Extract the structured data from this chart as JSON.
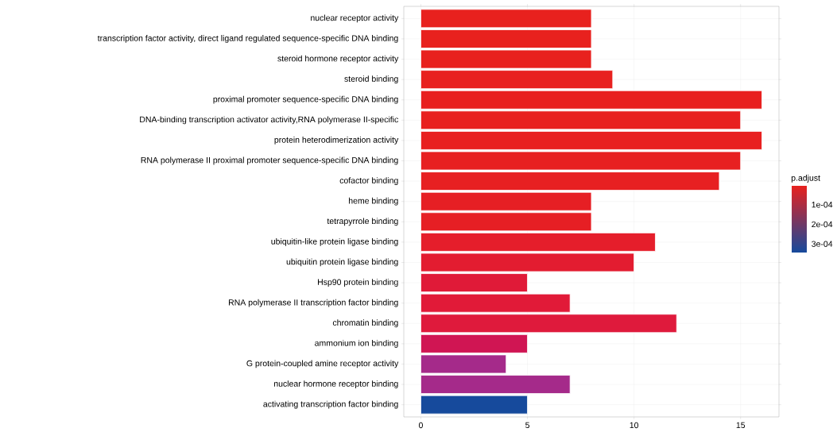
{
  "chart_data": {
    "type": "bar",
    "orientation": "horizontal",
    "categories": [
      "nuclear receptor activity",
      "transcription factor activity, direct ligand regulated sequence-specific DNA binding",
      "steroid hormone receptor activity",
      "steroid binding",
      "proximal promoter sequence-specific DNA binding",
      "DNA-binding transcription activator activity,RNA polymerase II-specific",
      "protein heterodimerization activity",
      "RNA polymerase II proximal promoter sequence-specific DNA binding",
      "cofactor binding",
      "heme binding",
      "tetrapyrrole binding",
      "ubiquitin-like protein ligase binding",
      "ubiquitin protein ligase binding",
      "Hsp90 protein binding",
      "RNA polymerase II transcription factor binding",
      "chromatin binding",
      "ammonium ion binding",
      "G protein-coupled amine receptor activity",
      "nuclear hormone receptor binding",
      "activating transcription factor binding"
    ],
    "values": [
      8,
      8,
      8,
      9,
      16,
      15,
      16,
      15,
      14,
      8,
      8,
      11,
      10,
      5,
      7,
      12,
      5,
      4,
      7,
      5
    ],
    "colors": [
      "#e8211e",
      "#e8211e",
      "#e8211e",
      "#e8211f",
      "#e8201f",
      "#e8201f",
      "#e82020",
      "#e72021",
      "#e72022",
      "#e61f24",
      "#e61f24",
      "#e51e2b",
      "#e31c30",
      "#e01a38",
      "#e11a38",
      "#df1a3c",
      "#d01553",
      "#a52a8a",
      "#a52a8a",
      "#164a9c"
    ],
    "xlim": [
      -0.8,
      16.8
    ],
    "xticks": [
      0,
      5,
      10,
      15
    ],
    "grid": true,
    "clabel": "p.adjust",
    "clim": [
      4e-06,
      0.000344
    ],
    "cticks": [
      {
        "value": 0.0001,
        "label": "1e-04"
      },
      {
        "value": 0.0002,
        "label": "2e-04"
      },
      {
        "value": 0.0003,
        "label": "3e-04"
      }
    ]
  }
}
